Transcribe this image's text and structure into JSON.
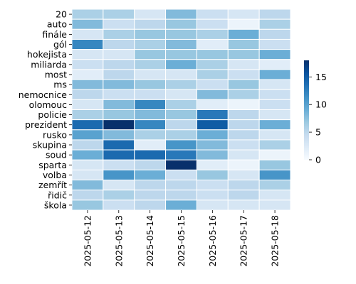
{
  "chart_data": {
    "type": "heatmap",
    "title": "",
    "xlabel": "",
    "ylabel": "",
    "x": [
      "2025-05-12",
      "2025-05-13",
      "2025-05-14",
      "2025-05-15",
      "2025-05-16",
      "2025-05-17",
      "2025-05-18"
    ],
    "y": [
      "20",
      "auto",
      "finále",
      "gól",
      "hokejista",
      "miliarda",
      "most",
      "ms",
      "nemocnice",
      "olomouc",
      "policie",
      "prezident",
      "rusko",
      "skupina",
      "soud",
      "sparta",
      "volba",
      "zemřít",
      "řidič",
      "škola"
    ],
    "values": [
      [
        6,
        6,
        3,
        8,
        4,
        3,
        5
      ],
      [
        8,
        4,
        5,
        7,
        4,
        1,
        6
      ],
      [
        3,
        6,
        7,
        7,
        6,
        9,
        5
      ],
      [
        12,
        5,
        6,
        8,
        2,
        7,
        4
      ],
      [
        3,
        3,
        7,
        7,
        7,
        7,
        9
      ],
      [
        4,
        5,
        6,
        9,
        6,
        3,
        2
      ],
      [
        2,
        5,
        3,
        3,
        6,
        4,
        9
      ],
      [
        8,
        8,
        7,
        6,
        4,
        7,
        3
      ],
      [
        5,
        4,
        4,
        3,
        8,
        6,
        4
      ],
      [
        3,
        8,
        12,
        6,
        2,
        1,
        4
      ],
      [
        6,
        7,
        8,
        7,
        13,
        5,
        3
      ],
      [
        14,
        18,
        12,
        5,
        15,
        5,
        9
      ],
      [
        10,
        8,
        6,
        6,
        9,
        5,
        3
      ],
      [
        5,
        14,
        2,
        11,
        8,
        4,
        6
      ],
      [
        9,
        14,
        14,
        13,
        8,
        3,
        1
      ],
      [
        3,
        4,
        5,
        18,
        2,
        1,
        7
      ],
      [
        3,
        11,
        9,
        4,
        7,
        3,
        11
      ],
      [
        8,
        3,
        5,
        5,
        4,
        5,
        6
      ],
      [
        5,
        6,
        5,
        5,
        4,
        5,
        3
      ],
      [
        7,
        4,
        5,
        9,
        3,
        3,
        3
      ]
    ],
    "vmin": 0,
    "vmax": 18,
    "colorbar_ticks": [
      0,
      5,
      10,
      15
    ],
    "colormap": "Blues",
    "grid": false,
    "colorbar_position": "right"
  }
}
